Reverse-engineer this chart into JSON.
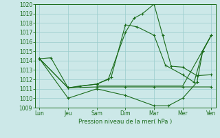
{
  "title": "Pression niveau de la mer( hPa )",
  "bg_color": "#cce8e8",
  "grid_color": "#99cccc",
  "line_color": "#1a6b1a",
  "ylim": [
    1009,
    1020
  ],
  "xlim": [
    -0.15,
    6.15
  ],
  "xlabels": [
    "Lun",
    "Jeu",
    "Sam",
    "Dim",
    "Mar",
    "Mer",
    "Ven"
  ],
  "xtick_pos": [
    0,
    1,
    2,
    3,
    4,
    5,
    6
  ],
  "s1x": [
    0,
    0.4,
    1,
    1.4,
    2,
    2.4,
    3,
    3.3,
    3.6,
    4,
    4.3,
    4.6,
    5,
    5.5,
    6
  ],
  "s1y": [
    1014.2,
    1014.3,
    1011.1,
    1011.3,
    1011.5,
    1012.0,
    1017.0,
    1018.5,
    1019.0,
    1020.0,
    1016.7,
    1013.4,
    1013.3,
    1012.4,
    1012.5
  ],
  "s2x": [
    0,
    1,
    2,
    2.5,
    3,
    3.4,
    4,
    4.4,
    5,
    5.4,
    5.7,
    6
  ],
  "s2y": [
    1014.2,
    1011.1,
    1011.5,
    1012.2,
    1017.8,
    1017.6,
    1016.7,
    1013.5,
    1012.5,
    1011.7,
    1015.0,
    1016.7
  ],
  "s3x": [
    0,
    1,
    2,
    3,
    4,
    5,
    6
  ],
  "s3y": [
    1014.2,
    1011.1,
    1011.2,
    1011.2,
    1011.2,
    1011.2,
    1011.2
  ],
  "s4x": [
    0,
    1,
    2,
    3,
    4,
    4.5,
    5,
    5.5,
    5.7,
    6
  ],
  "s4y": [
    1014.2,
    1010.0,
    1011.0,
    1010.3,
    1009.2,
    1009.2,
    1010.0,
    1011.7,
    1015.0,
    1016.7
  ],
  "s5x": [
    2,
    3,
    4,
    5,
    6
  ],
  "s5y": [
    1011.3,
    1011.3,
    1011.3,
    1011.3,
    1016.7
  ]
}
